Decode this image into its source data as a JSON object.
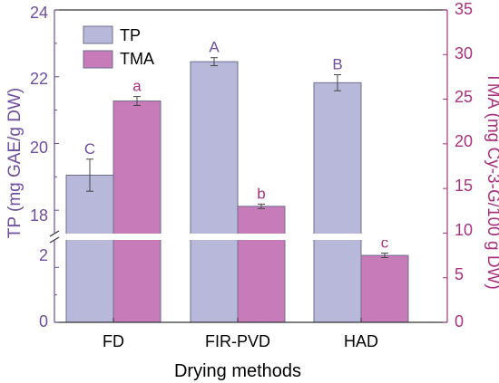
{
  "chart_data": {
    "type": "bar",
    "categories": [
      "FD",
      "FIR-PVD",
      "HAD"
    ],
    "xlabel": "Drying methods",
    "ylabel_left": "TP (mg GAE/g DW)",
    "ylabel_right": "TMA (mg Cy-3-G/100 g DW)",
    "left_axis": {
      "broken": true,
      "lower_segment": [
        0,
        3
      ],
      "upper_segment": [
        17.3,
        24
      ],
      "ticks": [
        "0",
        "2",
        "18",
        "20",
        "22",
        "24"
      ]
    },
    "right_axis": {
      "ylim": [
        0,
        35
      ],
      "ticks": [
        "0",
        "5",
        "10",
        "15",
        "20",
        "25",
        "30",
        "35"
      ]
    },
    "series": [
      {
        "name": "TP",
        "axis": "left",
        "color": "#b8b8db",
        "values": [
          19.05,
          22.45,
          21.82
        ],
        "errors": [
          0.48,
          0.12,
          0.24
        ],
        "labels": [
          "C",
          "A",
          "B"
        ]
      },
      {
        "name": "TMA",
        "axis": "right",
        "color": "#c77bb8",
        "values": [
          24.8,
          13.0,
          7.5
        ],
        "errors": [
          0.5,
          0.25,
          0.25
        ],
        "labels": [
          "a",
          "b",
          "c"
        ]
      }
    ],
    "colors": {
      "left_axis": "#6e4e9e",
      "right_axis": "#a8327e",
      "frame": "#333333"
    },
    "legend_position": "top-left",
    "grid": false
  }
}
